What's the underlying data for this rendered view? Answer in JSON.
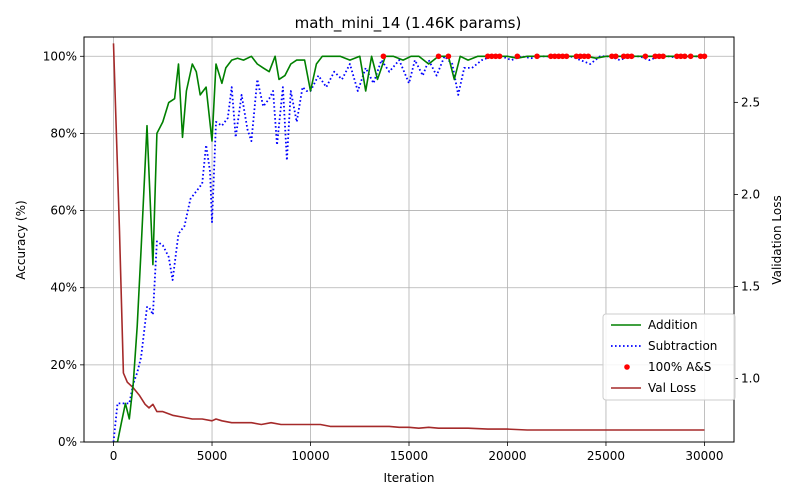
{
  "chart_data": {
    "type": "line",
    "title": "math_mini_14 (1.46K params)",
    "xlabel": "Iteration",
    "ylabel_left": "Accuracy (%)",
    "ylabel_right": "Validation Loss",
    "xlim": [
      -1500,
      31500
    ],
    "ylim_left": [
      0,
      105
    ],
    "ylim_right": [
      0.655,
      2.855
    ],
    "x_ticks": [
      0,
      5000,
      10000,
      15000,
      20000,
      25000,
      30000
    ],
    "x_tick_labels": [
      "0",
      "5000",
      "10000",
      "15000",
      "20000",
      "25000",
      "30000"
    ],
    "y_left_ticks": [
      0,
      20,
      40,
      60,
      80,
      100
    ],
    "y_left_tick_labels": [
      "0%",
      "20%",
      "40%",
      "60%",
      "80%",
      "100%"
    ],
    "y_right_ticks": [
      1.0,
      1.5,
      2.0,
      2.5
    ],
    "y_right_tick_labels": [
      "1.0",
      "1.5",
      "2.0",
      "2.5"
    ],
    "grid": true,
    "legend_position": "center-right",
    "legend": [
      "Addition",
      "Subtraction",
      "100% A&S",
      "Val Loss"
    ],
    "colors": {
      "addition": "#008000",
      "subtraction": "#0000ff",
      "full": "#ff0000",
      "loss": "#a52a2a"
    },
    "series": [
      {
        "name": "Addition",
        "axis": "left",
        "style": "solid",
        "x": [
          0,
          200,
          400,
          600,
          800,
          1000,
          1200,
          1400,
          1700,
          2000,
          2200,
          2500,
          2800,
          3100,
          3300,
          3500,
          3700,
          4000,
          4200,
          4400,
          4700,
          5000,
          5200,
          5500,
          5700,
          6000,
          6300,
          6600,
          7000,
          7300,
          7600,
          7900,
          8200,
          8400,
          8700,
          9000,
          9300,
          9700,
          10000,
          10300,
          10600,
          11000,
          11500,
          12000,
          12500,
          12800,
          13100,
          13400,
          13800,
          14200,
          14700,
          15100,
          15500,
          16000,
          16500,
          17000,
          17300,
          17600,
          18000,
          18500,
          19000,
          19500,
          20000,
          20500,
          21000,
          21500,
          22000,
          23000,
          24000,
          24500,
          25000,
          26000,
          27000,
          28000,
          29000,
          30000
        ],
        "values": [
          0,
          0,
          5,
          10,
          6,
          15,
          30,
          50,
          82,
          46,
          80,
          83,
          88,
          89,
          98,
          79,
          91,
          98,
          96,
          90,
          92,
          78,
          98,
          93,
          97,
          99,
          99.5,
          99,
          100,
          98,
          97,
          96,
          100,
          94,
          95,
          98,
          99,
          99,
          91,
          98,
          100,
          100,
          100,
          99,
          100,
          91,
          100,
          94,
          100,
          100,
          99,
          100,
          100,
          98,
          100,
          100,
          94,
          100,
          99,
          100,
          100,
          100,
          100,
          99.5,
          100,
          100,
          100,
          100,
          100,
          99.5,
          100,
          100,
          100,
          100,
          100,
          100
        ]
      },
      {
        "name": "Subtraction",
        "axis": "left",
        "style": "dotted",
        "x": [
          0,
          200,
          400,
          600,
          800,
          1000,
          1200,
          1400,
          1700,
          1800,
          2000,
          2200,
          2500,
          2800,
          3000,
          3300,
          3600,
          3900,
          4200,
          4500,
          4700,
          4900,
          5000,
          5200,
          5500,
          5800,
          6000,
          6200,
          6500,
          6800,
          7000,
          7300,
          7600,
          7900,
          8100,
          8300,
          8600,
          8800,
          9000,
          9300,
          9600,
          9800,
          10000,
          10400,
          10800,
          11200,
          11600,
          12000,
          12400,
          12800,
          13200,
          13600,
          14000,
          14500,
          15000,
          15300,
          15700,
          16000,
          16400,
          16800,
          17200,
          17500,
          17800,
          18200,
          18700,
          19200,
          19700,
          20200,
          20700,
          21200,
          21700,
          22200,
          22700,
          23200,
          23700,
          24200,
          24700,
          25200,
          25700,
          26200,
          26700,
          27200,
          27700,
          28200,
          28700,
          29200,
          29700,
          30000
        ],
        "values": [
          0,
          10,
          10,
          10,
          10,
          15,
          18,
          22,
          35,
          35,
          33,
          52,
          51,
          48,
          42,
          54,
          56,
          63,
          65,
          67,
          77,
          70,
          57,
          83,
          82,
          84,
          92,
          79,
          90,
          81,
          78,
          94,
          87,
          89,
          91,
          77,
          92,
          73,
          91,
          83,
          92,
          91,
          91,
          95,
          92,
          96,
          94,
          98,
          91,
          97,
          93,
          99,
          96,
          99,
          93,
          99,
          95,
          99,
          95,
          100,
          98,
          90,
          97,
          97,
          99,
          100,
          100,
          99,
          100,
          99.5,
          100,
          100,
          100,
          100,
          99,
          98,
          100,
          100,
          99,
          100,
          100,
          99,
          100,
          100,
          99.5,
          100,
          100,
          100
        ]
      },
      {
        "name": "100% A&S",
        "axis": "left",
        "style": "markers",
        "x": [
          13700,
          16500,
          17000,
          19000,
          19200,
          19400,
          19600,
          20500,
          21500,
          22200,
          22400,
          22600,
          22800,
          23000,
          23500,
          23700,
          23900,
          24100,
          25300,
          25500,
          25900,
          26100,
          26300,
          27000,
          27500,
          27700,
          27900,
          28600,
          28800,
          29000,
          29300,
          29800,
          30000
        ],
        "values": [
          100,
          100,
          100,
          100,
          100,
          100,
          100,
          100,
          100,
          100,
          100,
          100,
          100,
          100,
          100,
          100,
          100,
          100,
          100,
          100,
          100,
          100,
          100,
          100,
          100,
          100,
          100,
          100,
          100,
          100,
          100,
          100,
          100
        ]
      },
      {
        "name": "Val Loss",
        "axis": "right",
        "style": "solid",
        "x": [
          0,
          300,
          500,
          700,
          1000,
          1300,
          1600,
          1800,
          2000,
          2200,
          2500,
          3000,
          3500,
          4000,
          4500,
          5000,
          5200,
          5500,
          6000,
          6500,
          7000,
          7500,
          8000,
          8500,
          9000,
          9500,
          10000,
          10500,
          11000,
          11500,
          12000,
          12500,
          13000,
          13500,
          14000,
          14500,
          15000,
          15500,
          16000,
          16500,
          17000,
          17500,
          18000,
          19000,
          20000,
          21000,
          22000,
          23000,
          24000,
          25000,
          26000,
          27000,
          28000,
          29000,
          30000
        ],
        "values": [
          2.82,
          1.8,
          1.03,
          0.98,
          0.95,
          0.91,
          0.86,
          0.84,
          0.86,
          0.82,
          0.82,
          0.8,
          0.79,
          0.78,
          0.78,
          0.77,
          0.78,
          0.77,
          0.76,
          0.76,
          0.76,
          0.75,
          0.76,
          0.75,
          0.75,
          0.75,
          0.75,
          0.75,
          0.74,
          0.74,
          0.74,
          0.74,
          0.74,
          0.74,
          0.74,
          0.735,
          0.735,
          0.73,
          0.735,
          0.73,
          0.73,
          0.73,
          0.73,
          0.725,
          0.725,
          0.72,
          0.72,
          0.72,
          0.72,
          0.72,
          0.72,
          0.72,
          0.72,
          0.72,
          0.72
        ]
      }
    ]
  }
}
